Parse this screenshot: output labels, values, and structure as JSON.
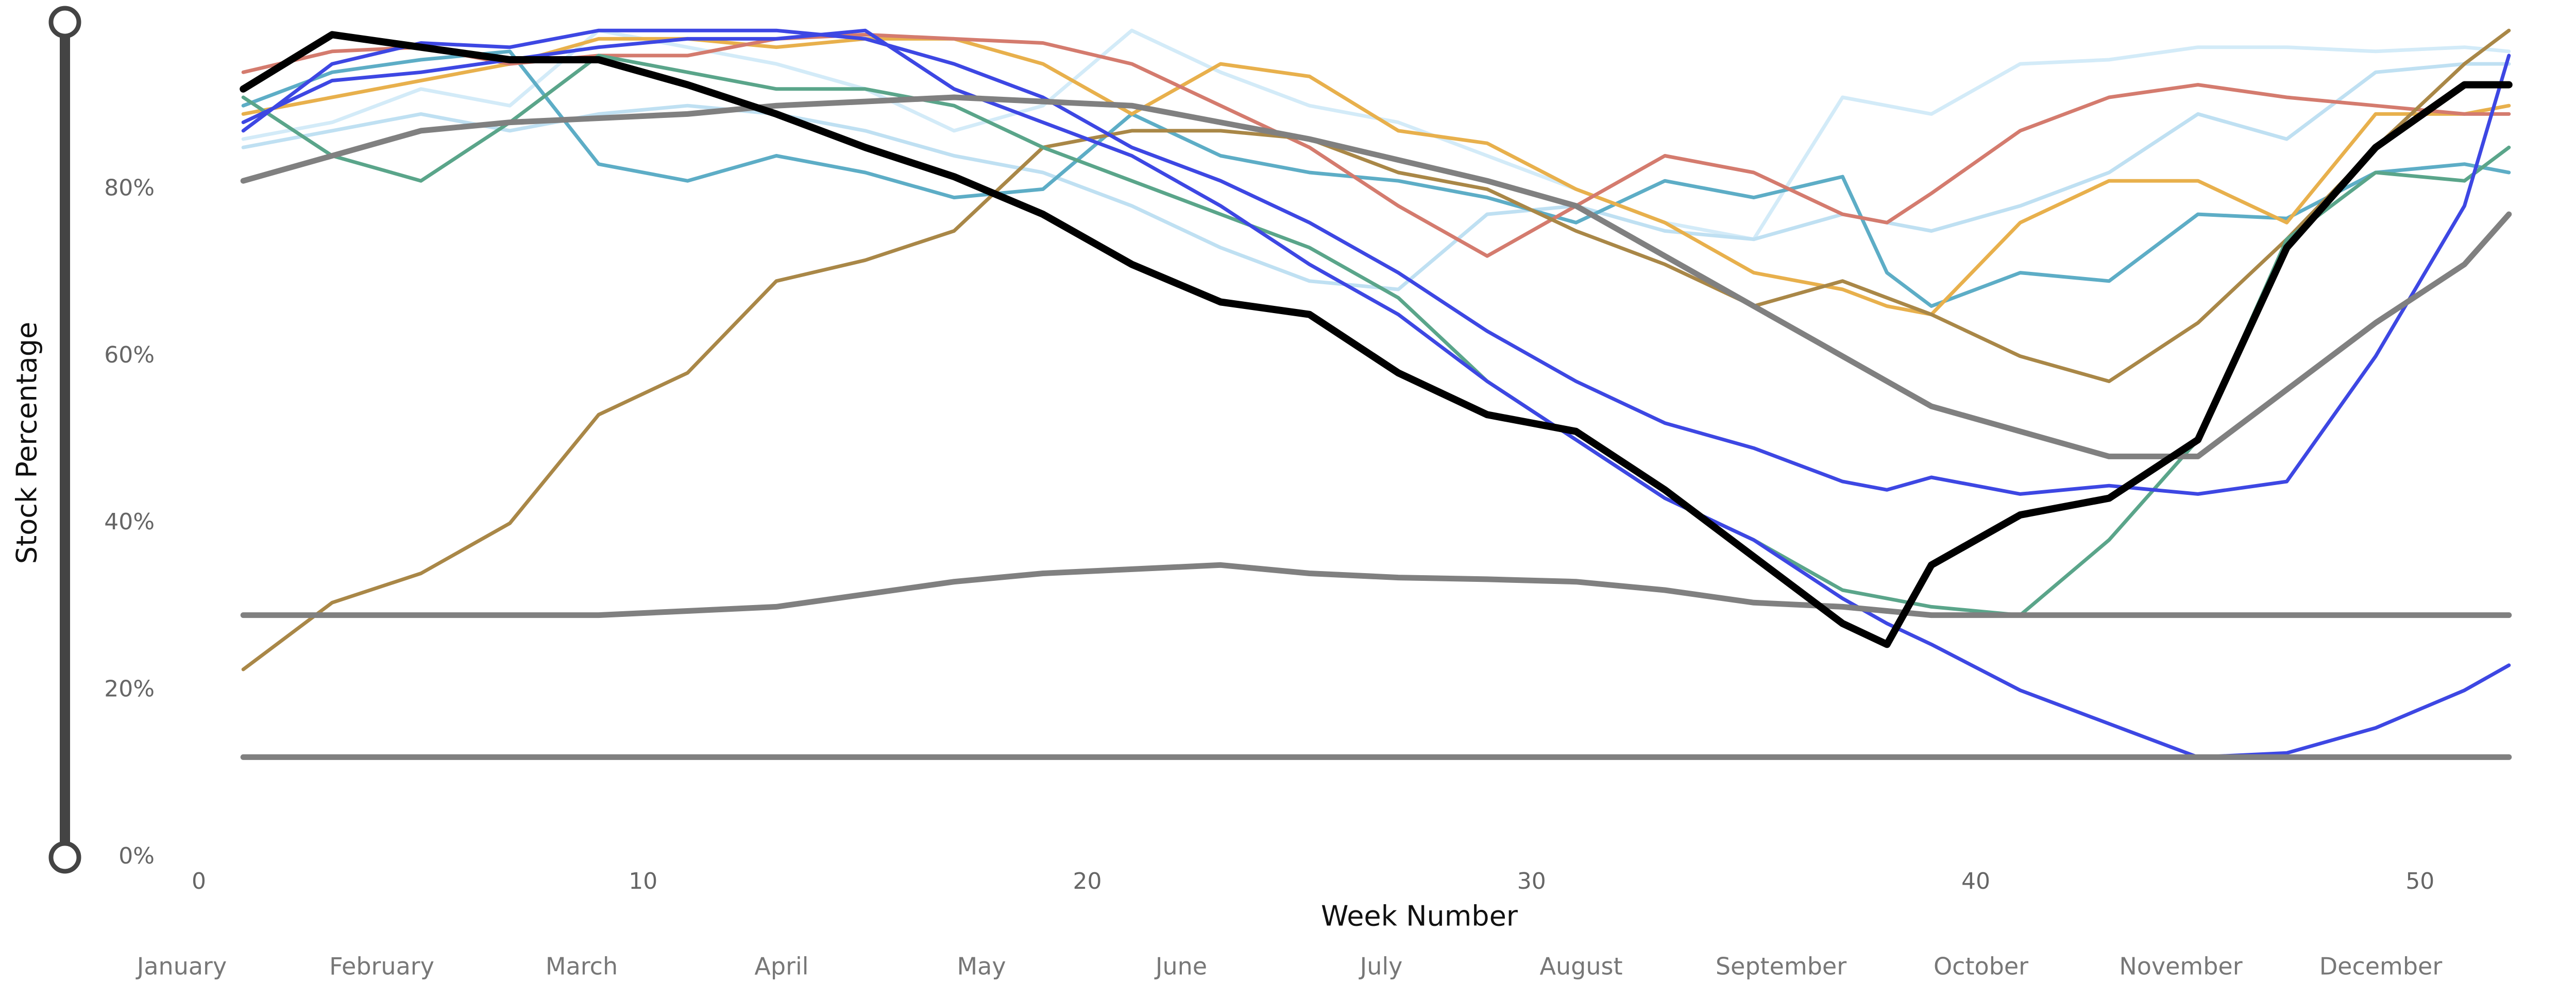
{
  "chart_data": {
    "type": "line",
    "x_label": "Week Number",
    "y_label": "Stock Percentage",
    "x": [
      1,
      3,
      5,
      7,
      9,
      11,
      13,
      15,
      17,
      19,
      21,
      23,
      25,
      27,
      29,
      31,
      33,
      35,
      37,
      38,
      39,
      41,
      43,
      45,
      47,
      49,
      51,
      52
    ],
    "xlim": [
      0,
      53
    ],
    "ylim": [
      0,
      100
    ],
    "xticks": [
      0,
      10,
      20,
      30,
      40,
      50
    ],
    "yticks": [
      {
        "value": 0,
        "label": "0%"
      },
      {
        "value": 20,
        "label": "20%"
      },
      {
        "value": 40,
        "label": "40%"
      },
      {
        "value": 60,
        "label": "60%"
      },
      {
        "value": 80,
        "label": "80%"
      }
    ],
    "months": [
      "January",
      "February",
      "March",
      "April",
      "May",
      "June",
      "July",
      "August",
      "September",
      "October",
      "November",
      "December"
    ],
    "grid": false,
    "series": [
      {
        "color": "#d3ebf8",
        "width": 7,
        "values": [
          86,
          88,
          92,
          90,
          99,
          97,
          95,
          92,
          87,
          90,
          99,
          94,
          90,
          88,
          84,
          80,
          76,
          74,
          91,
          90,
          89,
          95,
          95.5,
          97,
          97,
          96.5,
          97,
          96.5
        ]
      },
      {
        "color": "#bfe0f2",
        "width": 7,
        "values": [
          85,
          87,
          89,
          87,
          89,
          90,
          89,
          87,
          84,
          82,
          78,
          73,
          69,
          68,
          77,
          78,
          75,
          74,
          77,
          76,
          75,
          78,
          82,
          89,
          86,
          94,
          95,
          95
        ]
      },
      {
        "color": "#5dadc6",
        "width": 7,
        "values": [
          90,
          94,
          95.5,
          96.5,
          83,
          81,
          84,
          82,
          79,
          80,
          89,
          84,
          82,
          81,
          79,
          76,
          81,
          79,
          81.5,
          70,
          66,
          70,
          69,
          77,
          76.5,
          82,
          83,
          82
        ]
      },
      {
        "color": "#e8b04c",
        "width": 7,
        "values": [
          89,
          91,
          93,
          95,
          98,
          98,
          97,
          98,
          98,
          95,
          89,
          95,
          93.5,
          87,
          85.5,
          80,
          76,
          70,
          68,
          66,
          65,
          76,
          81,
          81,
          76,
          89,
          89,
          90
        ]
      },
      {
        "color": "#d47b6e",
        "width": 7,
        "values": [
          94,
          96.5,
          97,
          95,
          96,
          96,
          98,
          98.5,
          98,
          97.5,
          95,
          90,
          85,
          78,
          72,
          78,
          84,
          82,
          77,
          76,
          79.5,
          87,
          91,
          92.5,
          91,
          90,
          89,
          89
        ]
      },
      {
        "color": "#a98747",
        "width": 7,
        "values": [
          22.5,
          30.5,
          34,
          40,
          53,
          58,
          69,
          71.5,
          75,
          85,
          87,
          87,
          86,
          82,
          80,
          75,
          71,
          66,
          69,
          67,
          65,
          60,
          57,
          64,
          74,
          85,
          95,
          99
        ]
      },
      {
        "color": "#5aa58a",
        "width": 7,
        "values": [
          91,
          84,
          81,
          88,
          96,
          94,
          92,
          92,
          90,
          85,
          81,
          77,
          73,
          67,
          57,
          50,
          43,
          38,
          32,
          31,
          30,
          29,
          38,
          50,
          74,
          82,
          81,
          85
        ]
      },
      {
        "color": "#3d47e3",
        "width": 7,
        "values": [
          87,
          95,
          97.5,
          97,
          99,
          99,
          99,
          98,
          95,
          91,
          85,
          81,
          76,
          70,
          63,
          57,
          52,
          49,
          45,
          44,
          45.5,
          43.5,
          44.5,
          43.5,
          45,
          60,
          78,
          96
        ]
      },
      {
        "color": "#3d47e3",
        "width": 7,
        "values": [
          88,
          93,
          94,
          95.5,
          97,
          98,
          98,
          99,
          92,
          88,
          84,
          78,
          71,
          65,
          57,
          50,
          43,
          38,
          31,
          28,
          25.5,
          20,
          16,
          12,
          12.5,
          15.5,
          20,
          23
        ]
      },
      {
        "color": "#808080",
        "width": 11,
        "values": [
          12,
          12,
          12,
          12,
          12,
          12,
          12,
          12,
          12,
          12,
          12,
          12,
          12,
          12,
          12,
          12,
          12,
          12,
          12,
          12,
          12,
          12,
          12,
          12,
          12,
          12,
          12,
          12
        ]
      },
      {
        "color": "#808080",
        "width": 11,
        "values": [
          29,
          29,
          29,
          29,
          29,
          29.5,
          30,
          31.5,
          33,
          34,
          34.5,
          35,
          34,
          33.5,
          33.3,
          33,
          32,
          30.5,
          30,
          29.5,
          29,
          29,
          29,
          29,
          29,
          29,
          29,
          29
        ]
      },
      {
        "color": "#808080",
        "width": 11,
        "values": [
          81,
          84,
          87,
          88,
          88.5,
          89,
          90,
          90.5,
          91,
          90.5,
          90,
          88,
          86,
          83.5,
          81,
          78,
          72,
          66,
          60,
          57,
          54,
          51,
          48,
          48,
          56,
          64,
          71,
          77
        ]
      },
      {
        "color": "#000000",
        "width": 14,
        "values": [
          92,
          98.5,
          97,
          95.5,
          95.5,
          92.5,
          89,
          85,
          81.5,
          77,
          71,
          66.5,
          65,
          58,
          53,
          51,
          44,
          36,
          28,
          25.5,
          35,
          41,
          43,
          50,
          73,
          85,
          92.5,
          92.5
        ]
      }
    ]
  }
}
